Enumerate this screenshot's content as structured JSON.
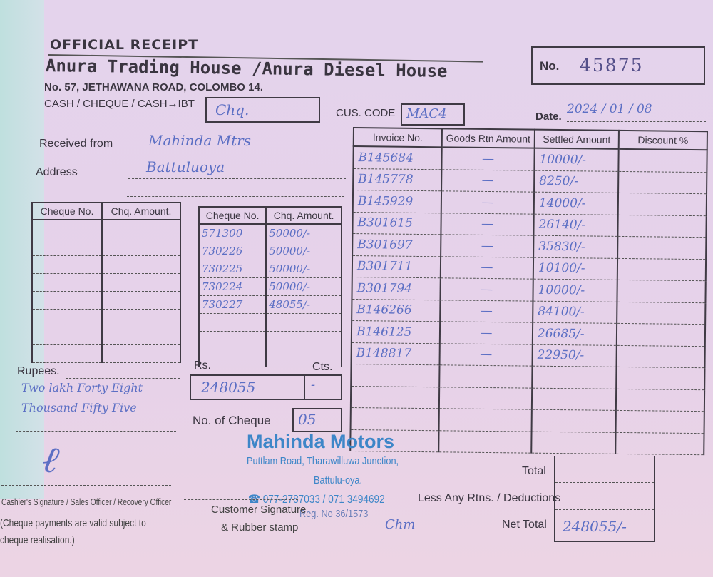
{
  "header": {
    "title": "OFFICIAL RECEIPT",
    "company": "Anura Trading House /Anura Diesel House",
    "address": "No. 57, JETHAWANA ROAD, COLOMBO 14.",
    "receipt_no_label": "No.",
    "receipt_no": "45875"
  },
  "payment": {
    "type_label": "CASH / CHEQUE / CASH→IBT",
    "type_value": "Chq.",
    "cus_code_label": "CUS. CODE",
    "cus_code_value": "MAC4",
    "date_label": "Date.",
    "date_value": "2024 / 01 / 08"
  },
  "customer": {
    "received_from_label": "Received from",
    "received_from_value": "Mahinda Mtrs",
    "address_label": "Address",
    "address_value": "Battuluoya"
  },
  "invoice_table": {
    "headers": [
      "Invoice No.",
      "Goods Rtn Amount",
      "Settled Amount",
      "Discount %"
    ],
    "rows": [
      {
        "invoice": "B145684",
        "goods_rtn": "—",
        "settled": "10000/-"
      },
      {
        "invoice": "B145778",
        "goods_rtn": "—",
        "settled": "8250/-"
      },
      {
        "invoice": "B145929",
        "goods_rtn": "—",
        "settled": "14000/-"
      },
      {
        "invoice": "B301615",
        "goods_rtn": "—",
        "settled": "26140/-"
      },
      {
        "invoice": "B301697",
        "goods_rtn": "—",
        "settled": "35830/-"
      },
      {
        "invoice": "B301711",
        "goods_rtn": "—",
        "settled": "10100/-"
      },
      {
        "invoice": "B301794",
        "goods_rtn": "—",
        "settled": "10000/-"
      },
      {
        "invoice": "B146266",
        "goods_rtn": "—",
        "settled": "84100/-"
      },
      {
        "invoice": "B146125",
        "goods_rtn": "—",
        "settled": "26685/-"
      },
      {
        "invoice": "B148817",
        "goods_rtn": "—",
        "settled": "22950/-"
      }
    ],
    "total_label": "Total",
    "deductions_label": "Less Any Rtns. / Deductions",
    "net_total_label": "Net Total",
    "net_total_value": "248055/-"
  },
  "cheque_table_left": {
    "headers": [
      "Cheque No.",
      "Chq. Amount."
    ]
  },
  "cheque_table_right": {
    "headers": [
      "Cheque No.",
      "Chq. Amount."
    ],
    "rows": [
      {
        "no": "571300",
        "amount": "50000/-"
      },
      {
        "no": "730226",
        "amount": "50000/-"
      },
      {
        "no": "730225",
        "amount": "50000/-"
      },
      {
        "no": "730224",
        "amount": "50000/-"
      },
      {
        "no": "730227",
        "amount": "48055/-"
      }
    ]
  },
  "amount": {
    "rupees_label": "Rupees.",
    "rupees_words": "Two lakh Forty Eight Thousand Fifty Five",
    "rs_label": "Rs.",
    "cts_label": "Cts.",
    "rs_value": "248055",
    "cts_value": "-",
    "no_of_cheque_label": "No. of Cheque",
    "no_of_cheque_value": "05"
  },
  "stamp": {
    "name": "Mahinda Motors",
    "address1": "Puttlam Road, Tharawilluwa Junction,",
    "address2": "Battulu-oya.",
    "phone": "077-2787033 / 071 3494692",
    "reg": "Reg. No 36/1573"
  },
  "footer": {
    "cashier_label": "Cashier's Signature / Sales Officer / Recovery Officer",
    "note": "(Cheque payments are valid subject to cheque realisation.)",
    "customer_sig_label": "Customer Signature",
    "rubber_stamp_label": "& Rubber stamp",
    "customer_sig_value": "Chm"
  },
  "colors": {
    "paper": "#e4d3ec",
    "ink": "#5c6fc4",
    "stamp": "#3d86c8",
    "print": "#3f3a44"
  }
}
